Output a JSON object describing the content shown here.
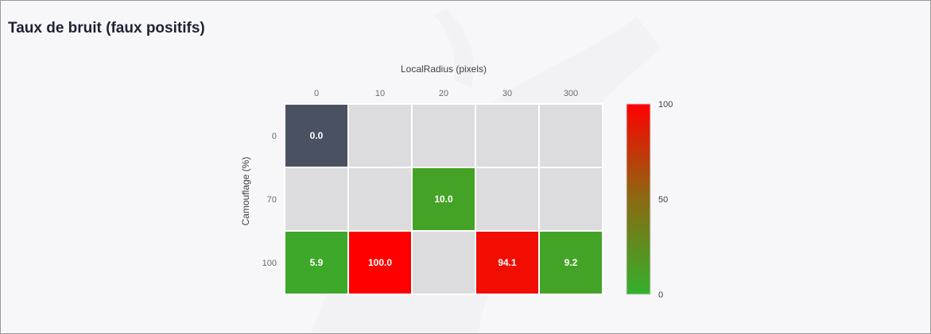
{
  "title": "Taux de bruit (faux positifs)",
  "chart_data": {
    "type": "heatmap",
    "xlabel": "LocalRadius (pixels)",
    "ylabel": "Camouflage (%)",
    "x_categories": [
      "0",
      "10",
      "20",
      "30",
      "300"
    ],
    "y_categories": [
      "0",
      "70",
      "100"
    ],
    "values": [
      [
        0.0,
        null,
        null,
        null,
        null
      ],
      [
        null,
        null,
        10.0,
        null,
        null
      ],
      [
        5.9,
        100.0,
        null,
        94.1,
        9.2
      ]
    ],
    "value_labels": [
      [
        "0.0",
        null,
        null,
        null,
        null
      ],
      [
        null,
        null,
        "10.0",
        null,
        null
      ],
      [
        "5.9",
        "100.0",
        null,
        "94.1",
        "9.2"
      ]
    ],
    "colorscale": {
      "min": 0,
      "max": 100,
      "min_color": "#33b02c",
      "max_color": "#ff0000",
      "ticks": [
        "100",
        "50",
        "0"
      ]
    },
    "colors": {
      "zero_cell": "#4a5262",
      "empty_cell": "#dcdcde"
    }
  }
}
